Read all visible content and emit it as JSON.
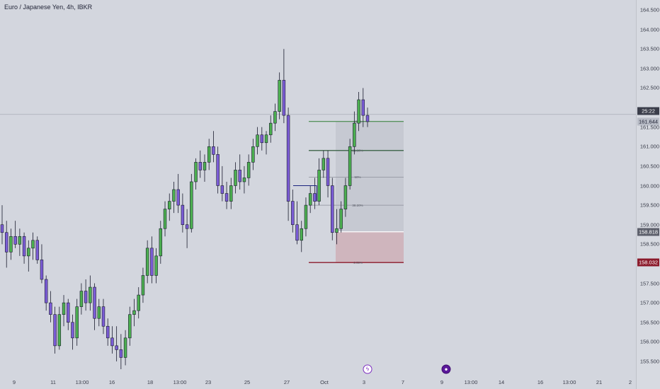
{
  "chart": {
    "title": "Euro / Japanese Yen, 4h, IBKR",
    "price_ticks": [
      "164.500",
      "164.000",
      "163.500",
      "163.000",
      "162.500",
      "161.500",
      "161.000",
      "160.500",
      "160.000",
      "159.500",
      "159.000",
      "158.500",
      "157.500",
      "157.000",
      "156.500",
      "156.000",
      "155.500"
    ],
    "time_ticks": [
      "9",
      "11",
      "13:00",
      "16",
      "18",
      "13:00",
      "23",
      "25",
      "27",
      "Oct",
      "3",
      "7",
      "9",
      "13:00",
      "14",
      "16",
      "13:00",
      "21",
      "2"
    ],
    "badges": {
      "countdown": "25:22",
      "current_price": "161.644",
      "entry_price": "158.818",
      "stop_price": "158.032"
    },
    "fib_labels": [
      "100%",
      "61.80%",
      "50%",
      "38.20%",
      "-2.50%"
    ],
    "events": [
      "news-lightning",
      "earnings-circle"
    ]
  },
  "colors": {
    "background": "#d3d6de",
    "bull_candle": "#4caf50",
    "bear_candle": "#7b5cd6",
    "candle_outline": "#1a1c2e",
    "profit_zone": "#c3c7d0",
    "loss_zone": "#cfb3ba",
    "stop_line": "#8b1a2b",
    "target_line": "#2e7d32"
  },
  "chart_data": {
    "type": "candlestick",
    "title": "Euro / Japanese Yen, 4h, IBKR",
    "xlabel": "",
    "ylabel": "",
    "ylim": [
      155.3,
      164.7
    ],
    "grid": false,
    "x_ticks": [
      "9",
      "11",
      "13:00",
      "16",
      "18",
      "13:00",
      "23",
      "25",
      "27",
      "Oct",
      "3",
      "7",
      "9",
      "13:00",
      "14",
      "16",
      "13:00",
      "21",
      "2"
    ],
    "candles": [
      [
        159.0,
        159.5,
        158.5,
        158.8
      ],
      [
        158.8,
        159.1,
        157.9,
        158.3
      ],
      [
        158.3,
        158.9,
        158.1,
        158.7
      ],
      [
        158.7,
        159.1,
        158.4,
        158.5
      ],
      [
        158.5,
        158.9,
        158.2,
        158.7
      ],
      [
        158.7,
        158.8,
        158.0,
        158.2
      ],
      [
        158.2,
        158.6,
        157.8,
        158.4
      ],
      [
        158.4,
        158.8,
        158.1,
        158.6
      ],
      [
        158.6,
        158.7,
        158.0,
        158.1
      ],
      [
        158.1,
        158.5,
        157.5,
        157.6
      ],
      [
        157.6,
        157.7,
        156.8,
        157.0
      ],
      [
        157.0,
        157.3,
        156.5,
        156.7
      ],
      [
        156.7,
        156.9,
        155.7,
        155.9
      ],
      [
        155.9,
        156.9,
        155.8,
        156.7
      ],
      [
        156.7,
        157.2,
        156.4,
        157.0
      ],
      [
        157.0,
        157.1,
        156.3,
        156.5
      ],
      [
        156.5,
        156.7,
        155.8,
        156.1
      ],
      [
        156.1,
        157.1,
        155.9,
        156.9
      ],
      [
        156.9,
        157.5,
        156.7,
        157.3
      ],
      [
        157.3,
        157.6,
        156.8,
        157.0
      ],
      [
        157.0,
        157.7,
        156.8,
        157.4
      ],
      [
        157.4,
        157.5,
        156.3,
        156.6
      ],
      [
        156.6,
        157.1,
        156.4,
        156.9
      ],
      [
        156.9,
        157.1,
        156.2,
        156.4
      ],
      [
        156.4,
        156.6,
        155.9,
        156.1
      ],
      [
        156.1,
        156.4,
        155.7,
        155.9
      ],
      [
        155.9,
        156.4,
        155.5,
        155.8
      ],
      [
        155.8,
        156.2,
        155.3,
        155.6
      ],
      [
        155.6,
        156.3,
        155.4,
        156.1
      ],
      [
        156.1,
        156.9,
        155.9,
        156.7
      ],
      [
        156.7,
        157.1,
        156.4,
        156.8
      ],
      [
        156.8,
        157.4,
        156.6,
        157.2
      ],
      [
        157.2,
        157.9,
        157.0,
        157.7
      ],
      [
        157.7,
        158.6,
        157.5,
        158.4
      ],
      [
        158.4,
        158.7,
        157.5,
        157.7
      ],
      [
        157.7,
        158.4,
        157.5,
        158.2
      ],
      [
        158.2,
        159.1,
        158.0,
        158.9
      ],
      [
        158.9,
        159.6,
        158.7,
        159.4
      ],
      [
        159.4,
        159.8,
        159.1,
        159.6
      ],
      [
        159.6,
        160.1,
        159.3,
        159.9
      ],
      [
        159.9,
        160.3,
        159.3,
        159.5
      ],
      [
        159.5,
        159.8,
        158.8,
        159.0
      ],
      [
        159.0,
        159.4,
        158.4,
        158.9
      ],
      [
        158.9,
        160.3,
        158.8,
        160.1
      ],
      [
        160.1,
        160.7,
        159.9,
        160.6
      ],
      [
        160.6,
        160.9,
        160.2,
        160.4
      ],
      [
        160.4,
        160.8,
        160.1,
        160.6
      ],
      [
        160.6,
        161.2,
        160.4,
        161.0
      ],
      [
        161.0,
        161.4,
        160.6,
        160.8
      ],
      [
        160.8,
        161.0,
        159.8,
        160.0
      ],
      [
        160.0,
        160.5,
        159.6,
        159.8
      ],
      [
        159.8,
        160.1,
        159.4,
        159.6
      ],
      [
        159.6,
        160.2,
        159.4,
        160.0
      ],
      [
        160.0,
        160.6,
        159.8,
        160.4
      ],
      [
        160.4,
        160.8,
        159.9,
        160.1
      ],
      [
        160.1,
        160.5,
        159.8,
        160.2
      ],
      [
        160.2,
        160.8,
        160.0,
        160.6
      ],
      [
        160.6,
        161.2,
        160.4,
        161.0
      ],
      [
        161.0,
        161.5,
        160.8,
        161.3
      ],
      [
        161.3,
        161.5,
        160.9,
        161.1
      ],
      [
        161.1,
        161.4,
        160.8,
        161.3
      ],
      [
        161.3,
        161.8,
        161.1,
        161.6
      ],
      [
        161.6,
        162.1,
        161.4,
        161.9
      ],
      [
        161.9,
        162.9,
        161.7,
        162.7
      ],
      [
        162.7,
        163.5,
        161.6,
        161.8
      ],
      [
        161.8,
        162.0,
        159.1,
        159.6
      ],
      [
        159.6,
        159.9,
        158.8,
        159.0
      ],
      [
        159.0,
        159.6,
        158.5,
        158.6
      ],
      [
        158.6,
        159.1,
        158.3,
        158.9
      ],
      [
        158.9,
        159.7,
        158.7,
        159.5
      ],
      [
        159.5,
        160.0,
        159.3,
        159.8
      ],
      [
        159.8,
        160.2,
        159.4,
        159.6
      ],
      [
        159.6,
        160.7,
        159.5,
        160.4
      ],
      [
        160.4,
        160.9,
        160.2,
        160.7
      ],
      [
        160.7,
        160.9,
        159.7,
        160.0
      ],
      [
        160.0,
        160.2,
        158.6,
        158.8
      ],
      [
        158.8,
        159.4,
        158.5,
        158.9
      ],
      [
        158.9,
        159.6,
        158.8,
        159.4
      ],
      [
        159.4,
        160.2,
        159.2,
        160.0
      ],
      [
        160.0,
        161.2,
        159.9,
        161.0
      ],
      [
        161.0,
        161.9,
        160.8,
        161.6
      ],
      [
        161.6,
        162.4,
        161.4,
        162.2
      ],
      [
        162.2,
        162.5,
        161.5,
        161.8
      ],
      [
        161.8,
        162.0,
        161.5,
        161.64
      ]
    ],
    "position": {
      "target": 161.644,
      "entry": 158.818,
      "stop": 158.032
    },
    "fib_levels": [
      {
        "label": "100%",
        "value": 161.644
      },
      {
        "label": "61.80%",
        "value": 160.9
      },
      {
        "label": "50%",
        "value": 160.22
      },
      {
        "label": "38.20%",
        "value": 159.5
      },
      {
        "label": "-2.50%",
        "value": 158.032
      }
    ],
    "current_price": 161.644,
    "countdown": "25:22"
  }
}
